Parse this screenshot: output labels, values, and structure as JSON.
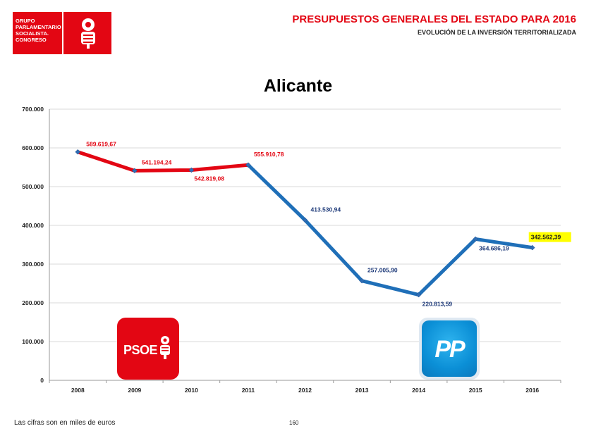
{
  "header": {
    "logo_lines": [
      "GRUPO",
      "PARLAMENTARIO",
      "SOCIALISTA.",
      "CONGRESO"
    ],
    "title": "PRESUPUESTOS GENERALES DEL ESTADO PARA 2016",
    "subtitle": "EVOLUCIÓN DE LA INVERSIÓN TERRITORIALIZADA"
  },
  "footer": {
    "note": "Las cifras son en miles de euros",
    "page_number": "160"
  },
  "party_logos": {
    "psoe_text": "PSOE",
    "pp_text": "PP"
  },
  "colors": {
    "psoe_red": "#e30613",
    "pp_blue": "#1f6fb8",
    "label_red": "#e30613",
    "label_blue": "#1f3b7a",
    "highlight": "#ffff00"
  },
  "chart_data": {
    "type": "line",
    "title": "Alicante",
    "categories": [
      "2008",
      "2009",
      "2010",
      "2011",
      "2012",
      "2013",
      "2014",
      "2015",
      "2016"
    ],
    "values": [
      589619.67,
      541194.24,
      542819.08,
      555910.78,
      413530.94,
      257005.9,
      220813.59,
      364686.19,
      342562.39
    ],
    "data_labels": [
      "589.619,67",
      "541.194,24",
      "542.819,08",
      "555.910,78",
      "413.530,94",
      "257.005,90",
      "220.813,59",
      "364.686,19",
      "342.562,39"
    ],
    "segments": [
      {
        "name": "PSOE",
        "from": 0,
        "to": 3,
        "color": "#e30613"
      },
      {
        "name": "PP",
        "from": 3,
        "to": 8,
        "color": "#1f6fb8"
      }
    ],
    "highlighted_index": 8,
    "ylim": [
      0,
      700000
    ],
    "y_ticks": [
      0,
      100000,
      200000,
      300000,
      400000,
      500000,
      600000,
      700000
    ],
    "y_tick_labels": [
      "0",
      "100.000",
      "200.000",
      "300.000",
      "400.000",
      "500.000",
      "600.000",
      "700.000"
    ],
    "grid": true,
    "xlabel": "",
    "ylabel": ""
  }
}
